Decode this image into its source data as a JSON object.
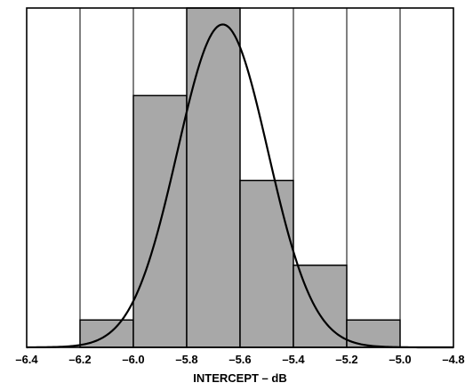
{
  "chart_data": {
    "type": "bar",
    "title": "",
    "xlabel": "INTERCEPT – dB",
    "ylabel": "",
    "xlim": [
      -6.4,
      -4.8
    ],
    "ylim": [
      0,
      6.2
    ],
    "x_ticks": [
      -6.4,
      -6.2,
      -6.0,
      -5.8,
      -5.6,
      -5.4,
      -5.2,
      -5.0,
      -4.8
    ],
    "x_tick_labels": [
      "–6.4",
      "–6.2",
      "–6.0",
      "–5.8",
      "–5.6",
      "–5.4",
      "–5.2",
      "–5.0",
      "–4.8"
    ],
    "grid": "vertical",
    "bins": [
      {
        "from": -6.2,
        "to": -6.0,
        "count": 0.5
      },
      {
        "from": -6.0,
        "to": -5.8,
        "count": 4.6
      },
      {
        "from": -5.8,
        "to": -5.6,
        "count": 6.2
      },
      {
        "from": -5.6,
        "to": -5.4,
        "count": 3.05
      },
      {
        "from": -5.4,
        "to": -5.2,
        "count": 1.5
      },
      {
        "from": -5.2,
        "to": -5.0,
        "count": 0.5
      }
    ],
    "fit_curve": {
      "type": "normal",
      "mean": -5.665,
      "std": 0.17,
      "peak": 5.9
    },
    "colors": {
      "bar_fill": "#a8a8a8",
      "bar_stroke": "#000000",
      "curve": "#000000",
      "grid": "#000000"
    }
  }
}
